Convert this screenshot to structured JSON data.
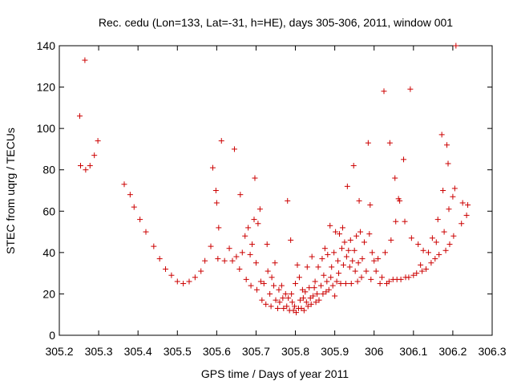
{
  "chart_data": {
    "type": "scatter",
    "title": "Rec. cedu (Lon=133, Lat=-31, h=HE), days 305-306, 2011, window 001",
    "xlabel": "GPS time / Days of year 2011",
    "ylabel": "STEC from uqrg / TECUs",
    "xlim": [
      305.2,
      306.3
    ],
    "ylim": [
      0,
      140
    ],
    "xticks": [
      305.2,
      305.3,
      305.4,
      305.5,
      305.6,
      305.7,
      305.8,
      305.9,
      306,
      306.1,
      306.2,
      306.3
    ],
    "xtick_labels": [
      "305.2",
      "305.3",
      "305.4",
      "305.5",
      "305.6",
      "305.7",
      "305.8",
      "305.9",
      "306",
      "306.1",
      "306.2",
      "306.3"
    ],
    "yticks": [
      0,
      20,
      40,
      60,
      80,
      100,
      120,
      140
    ],
    "ytick_labels": [
      "0",
      "20",
      "40",
      "60",
      "80",
      "100",
      "120",
      "140"
    ],
    "marker": "plus",
    "color": "#cc0000",
    "grid": false,
    "legend": "none",
    "points": [
      [
        305.252,
        106
      ],
      [
        305.254,
        82
      ],
      [
        305.265,
        133
      ],
      [
        305.267,
        80
      ],
      [
        305.278,
        82
      ],
      [
        305.289,
        87
      ],
      [
        305.298,
        94
      ],
      [
        305.365,
        73
      ],
      [
        305.38,
        68
      ],
      [
        305.39,
        62
      ],
      [
        305.405,
        56
      ],
      [
        305.42,
        50
      ],
      [
        305.44,
        43
      ],
      [
        305.455,
        37
      ],
      [
        305.47,
        32
      ],
      [
        305.485,
        29
      ],
      [
        305.5,
        26
      ],
      [
        305.515,
        25
      ],
      [
        305.53,
        26
      ],
      [
        305.545,
        28
      ],
      [
        305.56,
        31
      ],
      [
        305.57,
        36
      ],
      [
        305.585,
        43
      ],
      [
        305.59,
        81
      ],
      [
        305.598,
        70
      ],
      [
        305.6,
        64
      ],
      [
        305.612,
        94
      ],
      [
        305.605,
        52
      ],
      [
        305.603,
        37
      ],
      [
        305.62,
        36
      ],
      [
        305.632,
        42
      ],
      [
        305.64,
        36
      ],
      [
        305.645,
        90
      ],
      [
        305.65,
        38
      ],
      [
        305.658,
        32
      ],
      [
        305.66,
        68
      ],
      [
        305.665,
        40
      ],
      [
        305.672,
        48
      ],
      [
        305.675,
        27
      ],
      [
        305.68,
        52
      ],
      [
        305.685,
        39
      ],
      [
        305.687,
        24
      ],
      [
        305.69,
        44
      ],
      [
        305.695,
        56
      ],
      [
        305.697,
        76
      ],
      [
        305.7,
        35
      ],
      [
        305.702,
        22
      ],
      [
        305.705,
        54
      ],
      [
        305.71,
        61
      ],
      [
        305.712,
        26
      ],
      [
        305.715,
        17
      ],
      [
        305.72,
        25
      ],
      [
        305.725,
        15
      ],
      [
        305.728,
        44
      ],
      [
        305.73,
        31
      ],
      [
        305.735,
        20
      ],
      [
        305.738,
        14
      ],
      [
        305.74,
        28
      ],
      [
        305.745,
        24
      ],
      [
        305.748,
        35
      ],
      [
        305.75,
        17
      ],
      [
        305.755,
        13
      ],
      [
        305.758,
        22
      ],
      [
        305.76,
        16
      ],
      [
        305.765,
        24
      ],
      [
        305.768,
        18
      ],
      [
        305.77,
        13
      ],
      [
        305.775,
        20
      ],
      [
        305.778,
        14
      ],
      [
        305.78,
        65
      ],
      [
        305.782,
        18
      ],
      [
        305.785,
        12
      ],
      [
        305.788,
        46
      ],
      [
        305.79,
        20
      ],
      [
        305.792,
        16
      ],
      [
        305.795,
        12
      ],
      [
        305.798,
        14
      ],
      [
        305.8,
        25
      ],
      [
        305.802,
        11
      ],
      [
        305.805,
        34
      ],
      [
        305.808,
        13
      ],
      [
        305.81,
        28
      ],
      [
        305.812,
        17
      ],
      [
        305.815,
        13
      ],
      [
        305.818,
        22
      ],
      [
        305.82,
        18
      ],
      [
        305.822,
        12
      ],
      [
        305.825,
        21
      ],
      [
        305.828,
        16
      ],
      [
        305.83,
        33
      ],
      [
        305.832,
        14
      ],
      [
        305.835,
        23
      ],
      [
        305.838,
        18
      ],
      [
        305.84,
        15
      ],
      [
        305.842,
        38
      ],
      [
        305.845,
        19
      ],
      [
        305.848,
        23
      ],
      [
        305.85,
        26
      ],
      [
        305.852,
        16
      ],
      [
        305.855,
        20
      ],
      [
        305.858,
        33
      ],
      [
        305.86,
        17
      ],
      [
        305.865,
        24
      ],
      [
        305.868,
        37
      ],
      [
        305.87,
        20
      ],
      [
        305.872,
        29
      ],
      [
        305.875,
        42
      ],
      [
        305.878,
        21
      ],
      [
        305.88,
        26
      ],
      [
        305.882,
        39
      ],
      [
        305.885,
        22
      ],
      [
        305.888,
        53
      ],
      [
        305.89,
        28
      ],
      [
        305.892,
        33
      ],
      [
        305.895,
        24
      ],
      [
        305.898,
        40
      ],
      [
        305.9,
        19
      ],
      [
        305.902,
        50
      ],
      [
        305.905,
        26
      ],
      [
        305.908,
        36
      ],
      [
        305.91,
        30
      ],
      [
        305.912,
        49
      ],
      [
        305.915,
        25
      ],
      [
        305.918,
        42
      ],
      [
        305.92,
        52
      ],
      [
        305.922,
        34
      ],
      [
        305.925,
        45
      ],
      [
        305.928,
        25
      ],
      [
        305.93,
        38
      ],
      [
        305.932,
        72
      ],
      [
        305.935,
        41
      ],
      [
        305.938,
        33
      ],
      [
        305.94,
        46
      ],
      [
        305.942,
        25
      ],
      [
        305.945,
        36
      ],
      [
        305.948,
        82
      ],
      [
        305.95,
        41
      ],
      [
        305.952,
        31
      ],
      [
        305.955,
        48
      ],
      [
        305.958,
        26
      ],
      [
        305.96,
        35
      ],
      [
        305.962,
        65
      ],
      [
        305.965,
        50
      ],
      [
        305.968,
        28
      ],
      [
        305.97,
        37
      ],
      [
        305.975,
        45
      ],
      [
        305.98,
        31
      ],
      [
        305.985,
        93
      ],
      [
        305.988,
        49
      ],
      [
        305.99,
        63
      ],
      [
        305.992,
        27
      ],
      [
        305.995,
        40
      ],
      [
        306.0,
        36
      ],
      [
        306.005,
        31
      ],
      [
        306.01,
        37
      ],
      [
        306.015,
        25
      ],
      [
        306.02,
        28
      ],
      [
        306.025,
        118
      ],
      [
        306.028,
        40
      ],
      [
        306.032,
        25
      ],
      [
        306.038,
        26
      ],
      [
        306.04,
        93
      ],
      [
        306.043,
        46
      ],
      [
        306.048,
        27
      ],
      [
        306.053,
        76
      ],
      [
        306.055,
        55
      ],
      [
        306.058,
        27
      ],
      [
        306.062,
        66
      ],
      [
        306.065,
        65
      ],
      [
        306.068,
        27
      ],
      [
        306.075,
        85
      ],
      [
        306.078,
        55
      ],
      [
        306.08,
        28
      ],
      [
        306.088,
        28
      ],
      [
        306.092,
        119
      ],
      [
        306.095,
        47
      ],
      [
        306.1,
        29
      ],
      [
        306.108,
        30
      ],
      [
        306.112,
        44
      ],
      [
        306.118,
        34
      ],
      [
        306.122,
        31
      ],
      [
        306.125,
        41
      ],
      [
        306.132,
        32
      ],
      [
        306.138,
        40
      ],
      [
        306.145,
        35
      ],
      [
        306.148,
        47
      ],
      [
        306.155,
        37
      ],
      [
        306.158,
        45
      ],
      [
        306.162,
        56
      ],
      [
        306.165,
        39
      ],
      [
        306.172,
        97
      ],
      [
        306.175,
        70
      ],
      [
        306.178,
        50
      ],
      [
        306.182,
        41
      ],
      [
        306.185,
        92
      ],
      [
        306.188,
        83
      ],
      [
        306.19,
        61
      ],
      [
        306.192,
        44
      ],
      [
        306.2,
        67
      ],
      [
        306.202,
        48
      ],
      [
        306.205,
        71
      ],
      [
        306.208,
        140
      ],
      [
        306.222,
        54
      ],
      [
        306.225,
        64
      ],
      [
        306.235,
        58
      ],
      [
        306.238,
        63
      ]
    ]
  }
}
